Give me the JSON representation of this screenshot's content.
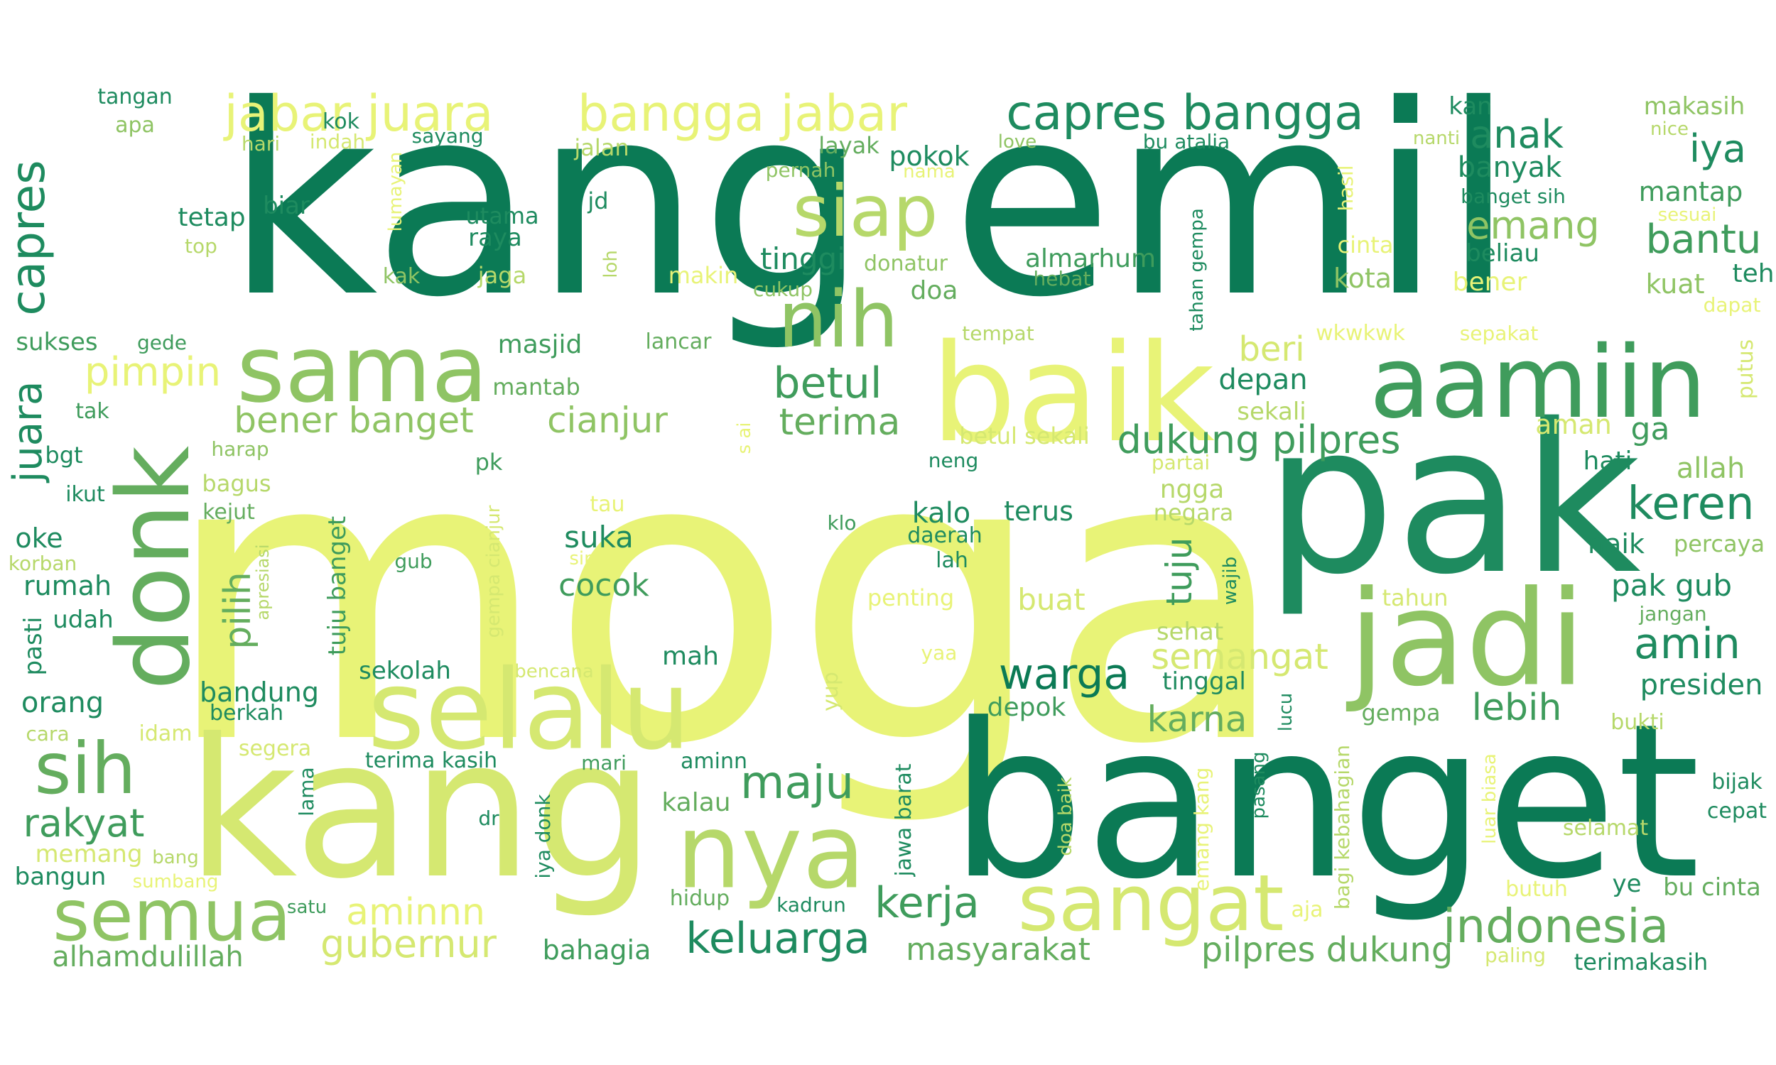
{
  "palette": {
    "background": "#ffffff",
    "c1": "#0b7a55",
    "c2": "#1e8b5f",
    "c3": "#3f9c5c",
    "c4": "#64ad5e",
    "c5": "#8fc464",
    "c6": "#b6d86a",
    "c7": "#d5e871",
    "c8": "#e8f377"
  },
  "words": [
    {
      "text": "moga",
      "color": "c8"
    },
    {
      "text": "kang emil",
      "color": "c1"
    },
    {
      "text": "pak",
      "color": "c2"
    },
    {
      "text": "banget",
      "color": "c1"
    },
    {
      "text": "kang",
      "color": "c7"
    },
    {
      "text": "jadi",
      "color": "c5"
    },
    {
      "text": "baik",
      "color": "c8"
    },
    {
      "text": "aamiin",
      "color": "c3"
    },
    {
      "text": "selalu",
      "color": "c7"
    },
    {
      "text": "sama",
      "color": "c5"
    },
    {
      "text": "donk",
      "color": "c4"
    },
    {
      "text": "nya",
      "color": "c6"
    },
    {
      "text": "sangat",
      "color": "c7"
    },
    {
      "text": "nih",
      "color": "c5"
    },
    {
      "text": "siap",
      "color": "c6"
    },
    {
      "text": "semua",
      "color": "c5"
    },
    {
      "text": "sih",
      "color": "c4"
    },
    {
      "text": "capres bangga",
      "color": "c2"
    },
    {
      "text": "jabar juara",
      "color": "c8"
    },
    {
      "text": "bangga jabar",
      "color": "c8"
    },
    {
      "text": "keren",
      "color": "c2"
    },
    {
      "text": "indonesia",
      "color": "c4"
    },
    {
      "text": "amin",
      "color": "c2"
    },
    {
      "text": "capres",
      "color": "c2"
    },
    {
      "text": "juara",
      "color": "c2"
    },
    {
      "text": "keluarga",
      "color": "c2"
    },
    {
      "text": "kerja",
      "color": "c3"
    },
    {
      "text": "maju",
      "color": "c3"
    },
    {
      "text": "rakyat",
      "color": "c3"
    },
    {
      "text": "warga",
      "color": "c1"
    },
    {
      "text": "betul",
      "color": "c3"
    },
    {
      "text": "bantu",
      "color": "c3"
    },
    {
      "text": "pimpin",
      "color": "c8"
    },
    {
      "text": "terima",
      "color": "c4"
    },
    {
      "text": "emang",
      "color": "c5"
    },
    {
      "text": "dukung pilpres",
      "color": "c3"
    },
    {
      "text": "bener banget",
      "color": "c5"
    },
    {
      "text": "cianjur",
      "color": "c5"
    },
    {
      "text": "anak",
      "color": "c2"
    },
    {
      "text": "iya",
      "color": "c2"
    },
    {
      "text": "lebih",
      "color": "c3"
    },
    {
      "text": "pilih",
      "color": "c4"
    },
    {
      "text": "semangat",
      "color": "c7"
    },
    {
      "text": "karna",
      "color": "c4"
    },
    {
      "text": "gubernur",
      "color": "c7"
    },
    {
      "text": "aminnn",
      "color": "c8"
    },
    {
      "text": "pilpres dukung",
      "color": "c4"
    },
    {
      "text": "masyarakat",
      "color": "c4"
    },
    {
      "text": "tuju",
      "color": "c3"
    },
    {
      "text": "tinggi",
      "color": "c2"
    },
    {
      "text": "beri",
      "color": "c7"
    },
    {
      "text": "cocok",
      "color": "c3"
    },
    {
      "text": "suka",
      "color": "c2"
    },
    {
      "text": "buat",
      "color": "c7"
    },
    {
      "text": "kalo",
      "color": "c2"
    },
    {
      "text": "terus",
      "color": "c2"
    },
    {
      "text": "ga",
      "color": "c3"
    },
    {
      "text": "pak gub",
      "color": "c2"
    },
    {
      "text": "presiden",
      "color": "c2"
    },
    {
      "text": "banyak",
      "color": "c2"
    },
    {
      "text": "pokok",
      "color": "c2"
    },
    {
      "text": "mantap",
      "color": "c3"
    },
    {
      "text": "makasih",
      "color": "c5"
    },
    {
      "text": "kota",
      "color": "c5"
    },
    {
      "text": "bener",
      "color": "c8"
    },
    {
      "text": "beliau",
      "color": "c2"
    },
    {
      "text": "kuat",
      "color": "c5"
    },
    {
      "text": "teh",
      "color": "c2"
    },
    {
      "text": "depan",
      "color": "c2"
    },
    {
      "text": "sekali",
      "color": "c6"
    },
    {
      "text": "aman",
      "color": "c7"
    },
    {
      "text": "allah",
      "color": "c5"
    },
    {
      "text": "hati",
      "color": "c2"
    },
    {
      "text": "naik",
      "color": "c2"
    },
    {
      "text": "percaya",
      "color": "c5"
    },
    {
      "text": "negara",
      "color": "c6"
    },
    {
      "text": "ngga",
      "color": "c6"
    },
    {
      "text": "sehat",
      "color": "c6"
    },
    {
      "text": "tinggal",
      "color": "c2"
    },
    {
      "text": "depok",
      "color": "c3"
    },
    {
      "text": "mah",
      "color": "c2"
    },
    {
      "text": "kalau",
      "color": "c4"
    },
    {
      "text": "bahagia",
      "color": "c3"
    },
    {
      "text": "hidup",
      "color": "c4"
    },
    {
      "text": "kadrun",
      "color": "c2"
    },
    {
      "text": "bandung",
      "color": "c2"
    },
    {
      "text": "orang",
      "color": "c2"
    },
    {
      "text": "rumah",
      "color": "c2"
    },
    {
      "text": "oke",
      "color": "c2"
    },
    {
      "text": "udah",
      "color": "c2"
    },
    {
      "text": "bangun",
      "color": "c2"
    },
    {
      "text": "memang",
      "color": "c7"
    },
    {
      "text": "alhamdulillah",
      "color": "c4"
    },
    {
      "text": "masjid",
      "color": "c3"
    },
    {
      "text": "mantab",
      "color": "c4"
    },
    {
      "text": "tetap",
      "color": "c2"
    },
    {
      "text": "biar",
      "color": "c2"
    },
    {
      "text": "utama",
      "color": "c2"
    },
    {
      "text": "raya",
      "color": "c2"
    },
    {
      "text": "jd",
      "color": "c2"
    },
    {
      "text": "jalan",
      "color": "c6"
    },
    {
      "text": "layak",
      "color": "c4"
    },
    {
      "text": "almarhum",
      "color": "c3"
    },
    {
      "text": "hebat",
      "color": "c4"
    },
    {
      "text": "doa",
      "color": "c4"
    },
    {
      "text": "donatur",
      "color": "c5"
    },
    {
      "text": "cukup",
      "color": "c5"
    },
    {
      "text": "makin",
      "color": "c8"
    },
    {
      "text": "jaga",
      "color": "c6"
    },
    {
      "text": "kak",
      "color": "c5"
    },
    {
      "text": "top",
      "color": "c6"
    },
    {
      "text": "tangan",
      "color": "c2"
    },
    {
      "text": "apa",
      "color": "c5"
    },
    {
      "text": "kok",
      "color": "c2"
    },
    {
      "text": "hari",
      "color": "c6"
    },
    {
      "text": "indah",
      "color": "c7"
    },
    {
      "text": "sayang",
      "color": "c2"
    },
    {
      "text": "kan",
      "color": "c2"
    },
    {
      "text": "bu atalia",
      "color": "c2"
    },
    {
      "text": "love",
      "color": "c5"
    },
    {
      "text": "pernah",
      "color": "c5"
    },
    {
      "text": "nama",
      "color": "c8"
    },
    {
      "text": "nanti",
      "color": "c6"
    },
    {
      "text": "nice",
      "color": "c6"
    },
    {
      "text": "banget sih",
      "color": "c2"
    },
    {
      "text": "sesuai",
      "color": "c8"
    },
    {
      "text": "cinta",
      "color": "c8"
    },
    {
      "text": "dapat",
      "color": "c8"
    },
    {
      "text": "wkwkwk",
      "color": "c8"
    },
    {
      "text": "sepakat",
      "color": "c8"
    },
    {
      "text": "tempat",
      "color": "c6"
    },
    {
      "text": "lancar",
      "color": "c4"
    },
    {
      "text": "gede",
      "color": "c3"
    },
    {
      "text": "sukses",
      "color": "c3"
    },
    {
      "text": "tak",
      "color": "c3"
    },
    {
      "text": "bgt",
      "color": "c2"
    },
    {
      "text": "ikut",
      "color": "c2"
    },
    {
      "text": "harap",
      "color": "c5"
    },
    {
      "text": "bagus",
      "color": "c6"
    },
    {
      "text": "kejut",
      "color": "c4"
    },
    {
      "text": "korban",
      "color": "c6"
    },
    {
      "text": "pk",
      "color": "c3"
    },
    {
      "text": "tau",
      "color": "c8"
    },
    {
      "text": "klo",
      "color": "c3"
    },
    {
      "text": "sip",
      "color": "c8"
    },
    {
      "text": "gub",
      "color": "c3"
    },
    {
      "text": "betul sekali",
      "color": "c7"
    },
    {
      "text": "neng",
      "color": "c2"
    },
    {
      "text": "daerah",
      "color": "c2"
    },
    {
      "text": "lah",
      "color": "c2"
    },
    {
      "text": "partai",
      "color": "c7"
    },
    {
      "text": "penting",
      "color": "c8"
    },
    {
      "text": "yaa",
      "color": "c8"
    },
    {
      "text": "tahun",
      "color": "c7"
    },
    {
      "text": "jangan",
      "color": "c4"
    },
    {
      "text": "gempa",
      "color": "c4"
    },
    {
      "text": "bukti",
      "color": "c6"
    },
    {
      "text": "bijak",
      "color": "c2"
    },
    {
      "text": "cepat",
      "color": "c2"
    },
    {
      "text": "selamat",
      "color": "c6"
    },
    {
      "text": "ye",
      "color": "c2"
    },
    {
      "text": "bu cinta",
      "color": "c4"
    },
    {
      "text": "butuh",
      "color": "c8"
    },
    {
      "text": "aja",
      "color": "c8"
    },
    {
      "text": "paling",
      "color": "c7"
    },
    {
      "text": "terimakasih",
      "color": "c2"
    },
    {
      "text": "sekolah",
      "color": "c2"
    },
    {
      "text": "bencana",
      "color": "c7"
    },
    {
      "text": "berkah",
      "color": "c2"
    },
    {
      "text": "segera",
      "color": "c7"
    },
    {
      "text": "idam",
      "color": "c7"
    },
    {
      "text": "cara",
      "color": "c6"
    },
    {
      "text": "terima kasih",
      "color": "c2"
    },
    {
      "text": "mari",
      "color": "c3"
    },
    {
      "text": "aminn",
      "color": "c2"
    },
    {
      "text": "dr",
      "color": "c2"
    },
    {
      "text": "bang",
      "color": "c6"
    },
    {
      "text": "sumbang",
      "color": "c8"
    },
    {
      "text": "satu",
      "color": "c3"
    },
    {
      "text": "lama",
      "color": "c2"
    },
    {
      "text": "iya donk",
      "color": "c2"
    },
    {
      "text": "yup",
      "color": "c7"
    },
    {
      "text": "jawa barat",
      "color": "c2"
    },
    {
      "text": "doa baik",
      "color": "c6"
    },
    {
      "text": "emang kang",
      "color": "c8"
    },
    {
      "text": "pasang",
      "color": "c2"
    },
    {
      "text": "lucu",
      "color": "c2"
    },
    {
      "text": "bagi kebahagian",
      "color": "c6"
    },
    {
      "text": "luar biasa",
      "color": "c8"
    },
    {
      "text": "wajib",
      "color": "c2"
    },
    {
      "text": "tahan gempa",
      "color": "c2"
    },
    {
      "text": "hasil",
      "color": "c8"
    },
    {
      "text": "putus",
      "color": "c7"
    },
    {
      "text": "loh",
      "color": "c6"
    },
    {
      "text": "lumayan",
      "color": "c8"
    },
    {
      "text": "gempa cianjur",
      "color": "c7"
    },
    {
      "text": "apresiasi",
      "color": "c6"
    },
    {
      "text": "tuju banget",
      "color": "c3"
    },
    {
      "text": "pasti",
      "color": "c2"
    },
    {
      "text": "s ai",
      "color": "c8"
    }
  ]
}
